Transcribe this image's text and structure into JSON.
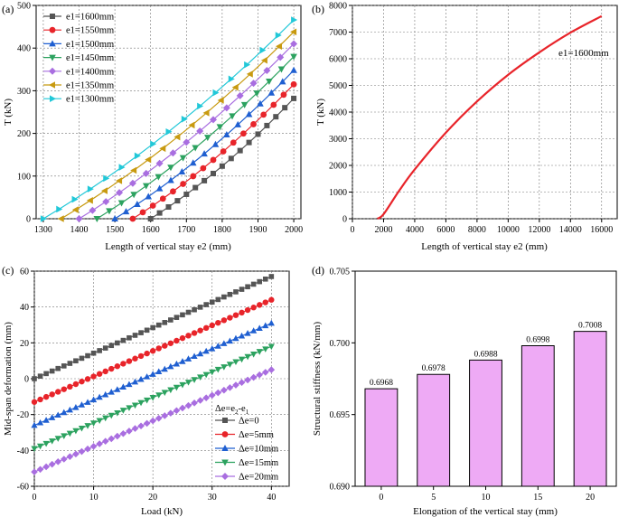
{
  "chart_data": [
    {
      "id": "a",
      "panel_label": "(a)",
      "type": "line",
      "xlabel": "Length of vertical stay e2 (mm)",
      "ylabel": "T (kN)",
      "xlim": [
        1280,
        2020
      ],
      "ylim": [
        0,
        500
      ],
      "xticks": [
        1300,
        1400,
        1500,
        1600,
        1700,
        1800,
        1900,
        2000
      ],
      "yticks": [
        0,
        100,
        200,
        300,
        400,
        500
      ],
      "grid": true,
      "legend_position": "top-left",
      "series": [
        {
          "name": "e1=1600mm",
          "color": "#555555",
          "marker": "square",
          "start_x": 1600,
          "end_x": 2000,
          "end_y": 282,
          "curve": 0.25
        },
        {
          "name": "e1=1550mm",
          "color": "#e8242a",
          "marker": "circle",
          "start_x": 1550,
          "end_x": 2000,
          "end_y": 315,
          "curve": 0.25
        },
        {
          "name": "e1=1500mm",
          "color": "#1f5fd1",
          "marker": "triangle-up",
          "start_x": 1500,
          "end_x": 2000,
          "end_y": 348,
          "curve": 0.25
        },
        {
          "name": "e1=1450mm",
          "color": "#2ca25f",
          "marker": "triangle-down",
          "start_x": 1450,
          "end_x": 2000,
          "end_y": 380,
          "curve": 0.25
        },
        {
          "name": "e1=1400mm",
          "color": "#a96ee0",
          "marker": "diamond",
          "start_x": 1400,
          "end_x": 2000,
          "end_y": 410,
          "curve": 0.25
        },
        {
          "name": "e1=1350mm",
          "color": "#c89a10",
          "marker": "triangle-left",
          "start_x": 1350,
          "end_x": 2000,
          "end_y": 438,
          "curve": 0.25
        },
        {
          "name": "e1=1300mm",
          "color": "#22c8d8",
          "marker": "triangle-right",
          "start_x": 1300,
          "end_x": 2000,
          "end_y": 466,
          "curve": 0.25
        }
      ]
    },
    {
      "id": "b",
      "panel_label": "(b)",
      "type": "line",
      "xlabel": "Length of vertical stay e2 (mm)",
      "ylabel": "T (kN)",
      "xlim": [
        0,
        17000
      ],
      "ylim": [
        0,
        8000
      ],
      "xticks": [
        0,
        2000,
        4000,
        6000,
        8000,
        10000,
        12000,
        14000,
        16000
      ],
      "yticks": [
        0,
        1000,
        2000,
        3000,
        4000,
        5000,
        6000,
        7000,
        8000
      ],
      "grid": true,
      "annotation": "e1=1600mm",
      "series": [
        {
          "name": "e1=1600mm",
          "color": "#e8242a",
          "x": [
            1600,
            2000,
            3000,
            4000,
            6000,
            8000,
            10000,
            12000,
            14000,
            16000
          ],
          "y": [
            0,
            170,
            1050,
            1850,
            3230,
            4400,
            5400,
            6240,
            6980,
            7600
          ]
        }
      ]
    },
    {
      "id": "c",
      "panel_label": "(c)",
      "type": "line",
      "xlabel": "Load (kN)",
      "ylabel": "Mid-span deformation (mm)",
      "xlim": [
        0,
        43
      ],
      "ylim": [
        -60,
        60
      ],
      "xticks": [
        0,
        10,
        20,
        30,
        40
      ],
      "yticks": [
        -60,
        -40,
        -20,
        0,
        20,
        40,
        60
      ],
      "grid": true,
      "legend_title": "Δe=e2-e1",
      "legend_position": "bottom-right",
      "series": [
        {
          "name": "Δe=0",
          "color": "#555555",
          "marker": "square",
          "y0": 0,
          "y1": 57
        },
        {
          "name": "Δe=5mm",
          "color": "#e8242a",
          "marker": "circle",
          "y0": -13,
          "y1": 44
        },
        {
          "name": "Δe=10mm",
          "color": "#1f5fd1",
          "marker": "triangle-up",
          "y0": -26,
          "y1": 31
        },
        {
          "name": "Δe=15mm",
          "color": "#2ca25f",
          "marker": "triangle-down",
          "y0": -39,
          "y1": 18
        },
        {
          "name": "Δe=20mm",
          "color": "#a96ee0",
          "marker": "diamond",
          "y0": -52,
          "y1": 5
        }
      ]
    },
    {
      "id": "d",
      "panel_label": "(d)",
      "type": "bar",
      "xlabel": "Elongation of the vertical stay (mm)",
      "ylabel": "Structural stiffness (kN/mm)",
      "ylim": [
        0.69,
        0.705
      ],
      "yticks": [
        "0.690",
        "0.695",
        "0.700",
        "0.705"
      ],
      "categories": [
        "0",
        "5",
        "10",
        "15",
        "20"
      ],
      "values": [
        0.6968,
        0.6978,
        0.6988,
        0.6998,
        0.7008
      ],
      "bar_labels": [
        "0.6968",
        "0.6978",
        "0.6988",
        "0.6998",
        "0.7008"
      ],
      "bar_color": "#eeaaf5",
      "grid": false
    }
  ]
}
